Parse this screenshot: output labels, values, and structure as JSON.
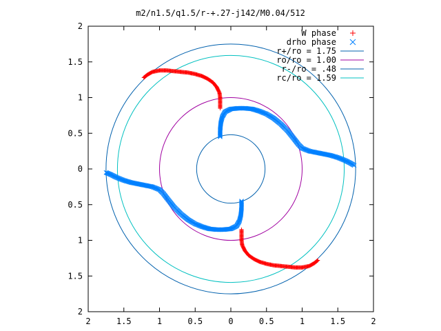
{
  "chart_data": {
    "type": "scatter",
    "title": "m2/n1.5/q1.5/r-+.27-j142/M0.04/512",
    "xlabel": "",
    "ylabel": "",
    "xlim": [
      -2,
      2
    ],
    "ylim": [
      -2,
      2
    ],
    "x_ticks": [
      "2",
      "1.5",
      "1",
      "0.5",
      "0",
      "0.5",
      "1",
      "1.5",
      "2"
    ],
    "y_ticks": [
      "2",
      "1.5",
      "1",
      "0.5",
      "0",
      "0.5",
      "1",
      "1.5",
      "2"
    ],
    "grid": false,
    "legend_position": "top-right",
    "series": [
      {
        "name": "W phase",
        "marker": "plus",
        "color": "#ff0000",
        "arms": [
          [
            [
              -1.22,
              1.28
            ],
            [
              -1.17,
              1.32
            ],
            [
              -1.1,
              1.36
            ],
            [
              -1.0,
              1.38
            ],
            [
              -0.9,
              1.38
            ],
            [
              -0.8,
              1.37
            ],
            [
              -0.7,
              1.36
            ],
            [
              -0.6,
              1.35
            ],
            [
              -0.5,
              1.33
            ],
            [
              -0.4,
              1.3
            ],
            [
              -0.32,
              1.26
            ],
            [
              -0.25,
              1.21
            ],
            [
              -0.2,
              1.15
            ],
            [
              -0.16,
              1.07
            ],
            [
              -0.15,
              1.0
            ],
            [
              -0.15,
              0.92
            ],
            [
              -0.15,
              0.85
            ]
          ],
          [
            [
              0.15,
              -0.85
            ],
            [
              0.15,
              -0.92
            ],
            [
              0.15,
              -1.0
            ],
            [
              0.16,
              -1.07
            ],
            [
              0.2,
              -1.15
            ],
            [
              0.25,
              -1.21
            ],
            [
              0.32,
              -1.26
            ],
            [
              0.4,
              -1.3
            ],
            [
              0.5,
              -1.33
            ],
            [
              0.6,
              -1.35
            ],
            [
              0.7,
              -1.36
            ],
            [
              0.8,
              -1.37
            ],
            [
              0.9,
              -1.38
            ],
            [
              1.0,
              -1.38
            ],
            [
              1.1,
              -1.36
            ],
            [
              1.17,
              -1.32
            ],
            [
              1.22,
              -1.28
            ]
          ]
        ]
      },
      {
        "name": "drho phase",
        "marker": "cross",
        "color": "#0080ff",
        "arms": [
          [
            [
              -0.15,
              0.45
            ],
            [
              -0.15,
              0.55
            ],
            [
              -0.14,
              0.65
            ],
            [
              -0.12,
              0.73
            ],
            [
              -0.08,
              0.8
            ],
            [
              0.0,
              0.84
            ],
            [
              0.1,
              0.85
            ],
            [
              0.2,
              0.85
            ],
            [
              0.3,
              0.84
            ],
            [
              0.4,
              0.81
            ],
            [
              0.5,
              0.77
            ],
            [
              0.6,
              0.71
            ],
            [
              0.7,
              0.63
            ],
            [
              0.8,
              0.53
            ],
            [
              0.88,
              0.43
            ],
            [
              0.95,
              0.34
            ],
            [
              1.0,
              0.29
            ],
            [
              1.1,
              0.25
            ],
            [
              1.2,
              0.23
            ],
            [
              1.3,
              0.21
            ],
            [
              1.4,
              0.19
            ],
            [
              1.5,
              0.16
            ],
            [
              1.6,
              0.12
            ],
            [
              1.68,
              0.08
            ],
            [
              1.73,
              0.05
            ]
          ],
          [
            [
              0.15,
              -0.45
            ],
            [
              0.15,
              -0.55
            ],
            [
              0.14,
              -0.65
            ],
            [
              0.12,
              -0.73
            ],
            [
              0.08,
              -0.8
            ],
            [
              0.0,
              -0.84
            ],
            [
              -0.1,
              -0.85
            ],
            [
              -0.2,
              -0.85
            ],
            [
              -0.3,
              -0.84
            ],
            [
              -0.4,
              -0.81
            ],
            [
              -0.5,
              -0.77
            ],
            [
              -0.6,
              -0.71
            ],
            [
              -0.7,
              -0.63
            ],
            [
              -0.8,
              -0.53
            ],
            [
              -0.88,
              -0.43
            ],
            [
              -0.95,
              -0.34
            ],
            [
              -1.0,
              -0.29
            ],
            [
              -1.1,
              -0.25
            ],
            [
              -1.2,
              -0.23
            ],
            [
              -1.3,
              -0.21
            ],
            [
              -1.4,
              -0.19
            ],
            [
              -1.5,
              -0.16
            ],
            [
              -1.6,
              -0.12
            ],
            [
              -1.68,
              -0.08
            ],
            [
              -1.75,
              -0.05
            ]
          ]
        ]
      }
    ],
    "circles": [
      {
        "name": "r+/ro = 1.75",
        "radius": 1.75,
        "color": "#0060ad"
      },
      {
        "name": "ro/ro = 1.00",
        "radius": 1.0,
        "color": "#a000a0"
      },
      {
        "name": "r-/ro = .48",
        "radius": 0.48,
        "color": "#0060ad"
      },
      {
        "name": "rc/ro = 1.59",
        "radius": 1.59,
        "color": "#00c0c0"
      }
    ]
  }
}
